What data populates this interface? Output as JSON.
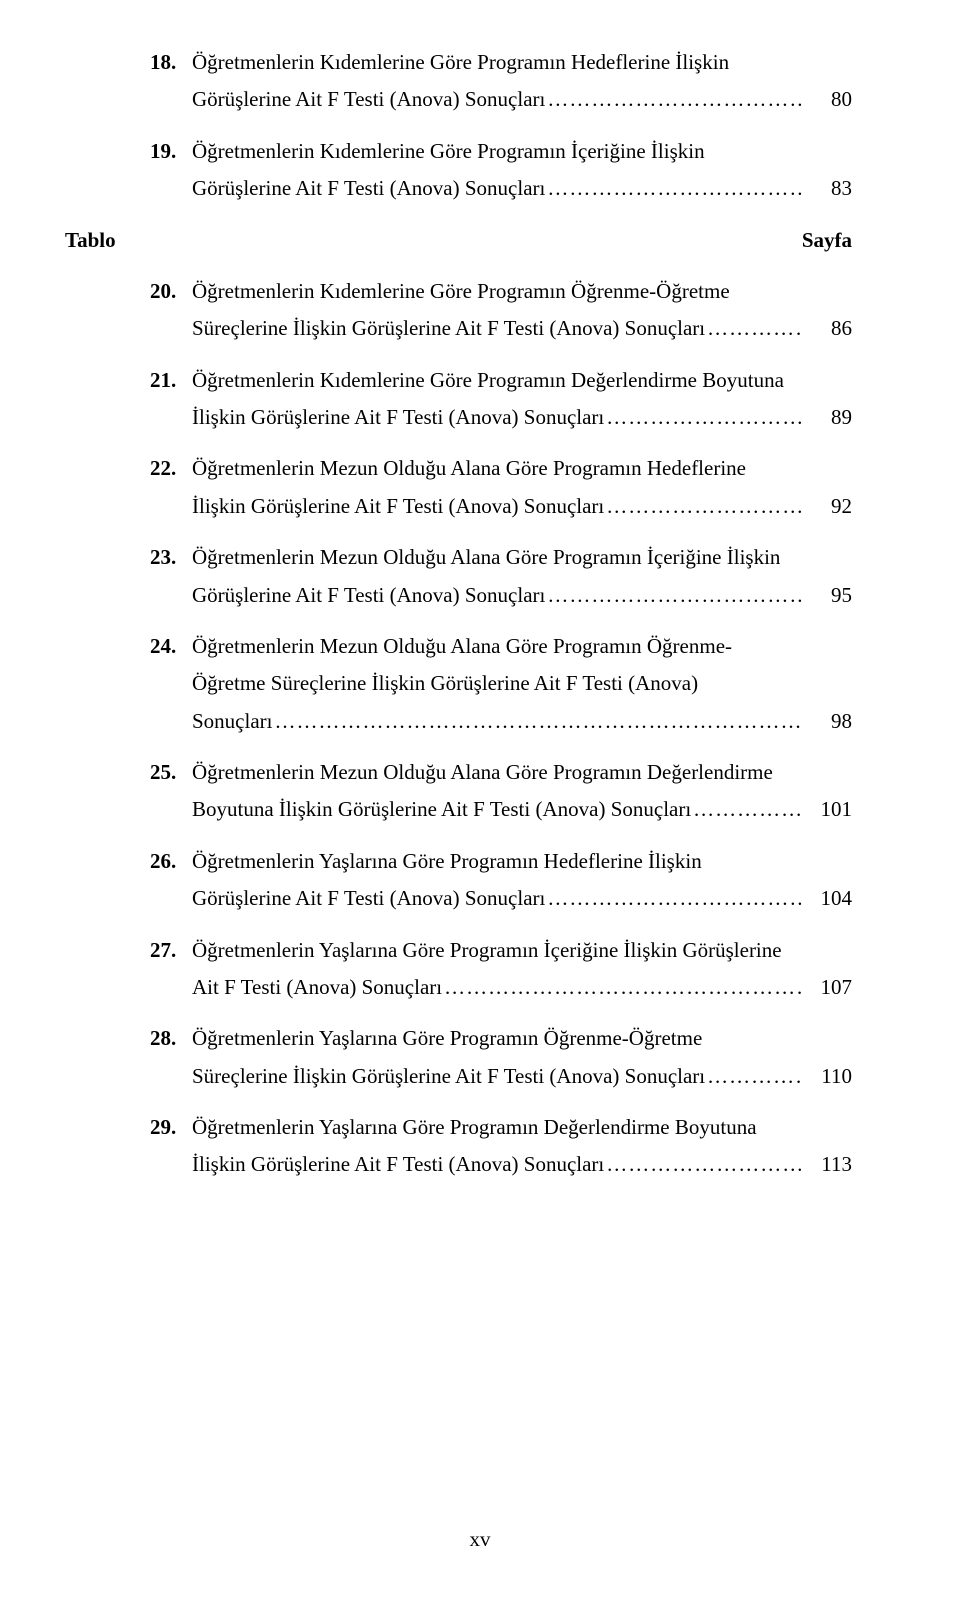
{
  "tablo_label": "Tablo",
  "sayfa_label": "Sayfa",
  "footer": "xv",
  "dots": "………………………………………………………………………………………………………………………",
  "entries": [
    {
      "num": "18.",
      "lines": [
        "Öğretmenlerin Kıdemlerine Göre Programın Hedeflerine İlişkin"
      ],
      "last": "Görüşlerine Ait F Testi (Anova) Sonuçları",
      "page": "80"
    },
    {
      "num": "19.",
      "lines": [
        "Öğretmenlerin Kıdemlerine Göre Programın İçeriğine İlişkin"
      ],
      "last": "Görüşlerine Ait F Testi (Anova) Sonuçları",
      "page": "83"
    },
    {
      "tablo": true
    },
    {
      "num": "20.",
      "lines": [
        "Öğretmenlerin Kıdemlerine Göre Programın Öğrenme-Öğretme"
      ],
      "last": "Süreçlerine İlişkin Görüşlerine Ait F Testi (Anova) Sonuçları",
      "page": "86"
    },
    {
      "num": "21.",
      "lines": [
        "Öğretmenlerin Kıdemlerine Göre Programın Değerlendirme Boyutuna"
      ],
      "last": "İlişkin Görüşlerine Ait F Testi (Anova) Sonuçları",
      "page": "89"
    },
    {
      "num": "22.",
      "lines": [
        "Öğretmenlerin Mezun Olduğu Alana Göre Programın Hedeflerine"
      ],
      "last": "İlişkin Görüşlerine Ait F Testi (Anova) Sonuçları",
      "page": "92"
    },
    {
      "num": "23.",
      "lines": [
        "Öğretmenlerin Mezun Olduğu Alana Göre Programın İçeriğine İlişkin"
      ],
      "last": "Görüşlerine Ait F Testi (Anova) Sonuçları",
      "page": "95"
    },
    {
      "num": "24.",
      "lines": [
        "Öğretmenlerin Mezun Olduğu Alana Göre Programın Öğrenme-",
        "Öğretme Süreçlerine İlişkin Görüşlerine Ait F Testi (Anova)"
      ],
      "last": "Sonuçları",
      "page": "98"
    },
    {
      "num": "25.",
      "lines": [
        "Öğretmenlerin Mezun Olduğu Alana Göre Programın Değerlendirme"
      ],
      "last": "Boyutuna İlişkin Görüşlerine Ait F Testi (Anova) Sonuçları",
      "page": "101"
    },
    {
      "num": "26.",
      "lines": [
        "Öğretmenlerin Yaşlarına Göre Programın Hedeflerine İlişkin"
      ],
      "last": "Görüşlerine Ait F Testi (Anova) Sonuçları",
      "page": "104"
    },
    {
      "num": "27.",
      "lines": [
        "Öğretmenlerin Yaşlarına Göre Programın İçeriğine İlişkin Görüşlerine"
      ],
      "last": "Ait F Testi (Anova) Sonuçları",
      "page": "107"
    },
    {
      "num": "28.",
      "lines": [
        "Öğretmenlerin Yaşlarına Göre Programın Öğrenme-Öğretme"
      ],
      "last": "Süreçlerine İlişkin Görüşlerine Ait F Testi (Anova) Sonuçları",
      "page": "110"
    },
    {
      "num": "29.",
      "lines": [
        "Öğretmenlerin Yaşlarına Göre Programın Değerlendirme Boyutuna"
      ],
      "last": "İlişkin Görüşlerine Ait F Testi (Anova) Sonuçları",
      "page": "113"
    }
  ]
}
